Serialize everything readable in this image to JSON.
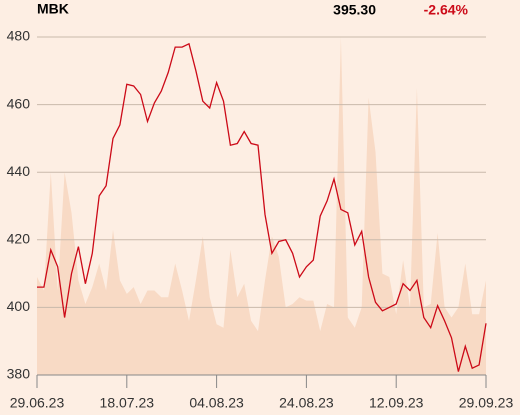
{
  "header": {
    "ticker": "MBK",
    "price": "395.30",
    "change": "-2.64%"
  },
  "chart_data": {
    "type": "line",
    "categories": [
      "29.06.23",
      null,
      null,
      null,
      null,
      null,
      null,
      null,
      null,
      null,
      null,
      null,
      null,
      "18.07.23",
      null,
      null,
      null,
      null,
      null,
      null,
      null,
      null,
      null,
      null,
      null,
      null,
      "04.08.23",
      null,
      null,
      null,
      null,
      null,
      null,
      null,
      null,
      null,
      null,
      null,
      null,
      "24.08.23",
      null,
      null,
      null,
      null,
      null,
      null,
      null,
      null,
      null,
      null,
      null,
      null,
      "12.09.23",
      null,
      null,
      null,
      null,
      null,
      null,
      null,
      null,
      null,
      null,
      null,
      null,
      "29.09.23"
    ],
    "series": [
      {
        "style": "area",
        "color": "#f8dac5",
        "values": [
          409,
          405,
          440,
          405,
          440,
          428,
          408,
          401,
          406,
          413,
          405,
          423,
          408,
          404,
          406,
          401,
          405,
          405,
          403,
          403,
          413,
          405,
          396,
          408,
          421,
          403,
          395,
          394,
          417,
          403,
          407,
          396,
          393,
          408,
          421,
          415,
          400,
          401,
          403,
          402,
          402,
          393,
          401,
          400,
          480,
          397,
          394,
          400,
          462,
          446,
          410,
          409,
          398,
          414,
          400,
          465,
          400,
          401,
          422,
          400,
          397,
          400,
          413,
          398,
          398,
          408
        ]
      },
      {
        "style": "line",
        "color": "#cc0a18",
        "values": [
          406,
          406,
          417,
          412,
          397,
          410,
          418,
          407,
          416,
          433,
          436,
          450,
          454,
          466,
          465.5,
          463,
          455,
          460.5,
          464,
          469.5,
          477,
          477,
          478,
          470,
          461,
          459,
          466.5,
          461,
          448,
          448.5,
          452,
          448.5,
          448,
          427.5,
          416,
          419.5,
          420,
          416,
          409,
          412,
          414,
          427,
          431.5,
          438,
          429,
          428,
          418.5,
          422.5,
          409,
          401.5,
          399,
          400,
          401,
          407,
          405,
          408,
          397,
          394,
          400.5,
          396,
          391,
          381,
          388.5,
          382,
          383,
          395.3
        ]
      }
    ],
    "ylim": [
      380,
      480
    ],
    "yticks": [
      380,
      400,
      420,
      440,
      460,
      480
    ],
    "grid": true,
    "change_color": "#cc0a18"
  }
}
